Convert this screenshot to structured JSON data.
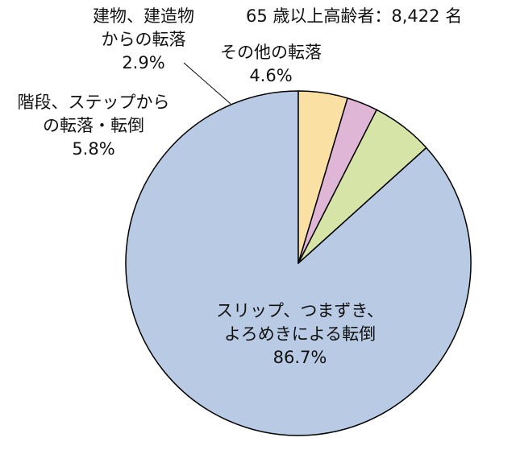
{
  "chart_data": {
    "type": "pie",
    "title": "",
    "note": "65 歳以上高齢者：8,422 名",
    "slices": [
      {
        "label_lines": [
          "スリップ、つまずき、",
          "よろめきによる転倒"
        ],
        "value_label": "86.7%",
        "value": 86.7,
        "color": "#b9cbe4"
      },
      {
        "label_lines": [
          "階段、ステップから",
          "の転落・転倒"
        ],
        "value_label": "5.8%",
        "value": 5.8,
        "color": "#d7e4a8"
      },
      {
        "label_lines": [
          "建物、建造物",
          "からの転落"
        ],
        "value_label": "2.9%",
        "value": 2.9,
        "color": "#e0b6d6"
      },
      {
        "label_lines": [
          "その他の転落"
        ],
        "value_label": "4.6%",
        "value": 4.6,
        "color": "#fbe0a4"
      }
    ],
    "start": "12 o'clock",
    "direction": "counterclockwise",
    "legend": "none"
  }
}
